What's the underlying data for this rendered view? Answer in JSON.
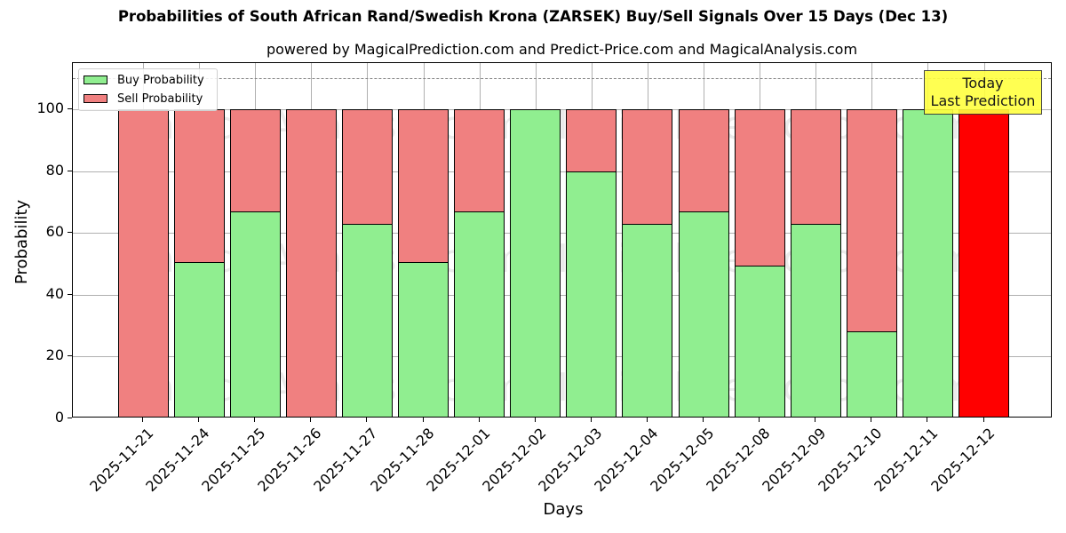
{
  "header": {
    "title": "Probabilities of South African Rand/Swedish Krona (ZARSEK) Buy/Sell Signals Over 15 Days (Dec 13)",
    "subtitle": "powered by MagicalPrediction.com and Predict-Price.com and MagicalAnalysis.com"
  },
  "legend": {
    "buy_label": "Buy Probability",
    "sell_label": "Sell Probability"
  },
  "annotation": {
    "line1": "Today",
    "line2": "Last Prediction"
  },
  "watermarks": [
    "MagicalAnalysis.com",
    "MagicalPrediction.com"
  ],
  "axes": {
    "xlabel": "Days",
    "ylabel": "Probability",
    "yticks": [
      "0",
      "20",
      "40",
      "60",
      "80",
      "100"
    ]
  },
  "colors": {
    "buy": "#90ee90",
    "sell": "#f08080",
    "today": "#ff0000",
    "annotation_bg": "#ffff40",
    "threshold_line": "#808080"
  },
  "chart_data": {
    "type": "bar",
    "stacked": true,
    "title": "Probabilities of South African Rand/Swedish Krona (ZARSEK) Buy/Sell Signals Over 15 Days (Dec 13)",
    "subtitle": "powered by MagicalPrediction.com and Predict-Price.com and MagicalAnalysis.com",
    "xlabel": "Days",
    "ylabel": "Probability",
    "ylim": [
      0,
      115
    ],
    "yticks": [
      0,
      20,
      40,
      60,
      80,
      100
    ],
    "grid": true,
    "legend_position": "upper left",
    "threshold_line": 110,
    "categories": [
      "2025-11-21",
      "2025-11-24",
      "2025-11-25",
      "2025-11-26",
      "2025-11-27",
      "2025-11-28",
      "2025-12-01",
      "2025-12-02",
      "2025-12-03",
      "2025-12-04",
      "2025-12-05",
      "2025-12-08",
      "2025-12-09",
      "2025-12-10",
      "2025-12-11",
      "2025-12-12"
    ],
    "series": [
      {
        "name": "Buy Probability",
        "values": [
          0,
          50.5,
          67,
          0,
          63,
          50.5,
          67,
          100,
          80,
          63,
          67,
          49.4,
          63,
          28.3,
          100,
          0
        ]
      },
      {
        "name": "Sell Probability",
        "values": [
          100,
          49.5,
          33,
          100,
          37,
          49.5,
          33,
          0,
          20,
          37,
          33,
          50.6,
          37,
          71.7,
          0,
          100
        ]
      }
    ],
    "annotations": [
      {
        "text": "Today\nLast Prediction",
        "x": "2025-12-12",
        "highlight": "last bar drawn in solid red"
      }
    ]
  }
}
